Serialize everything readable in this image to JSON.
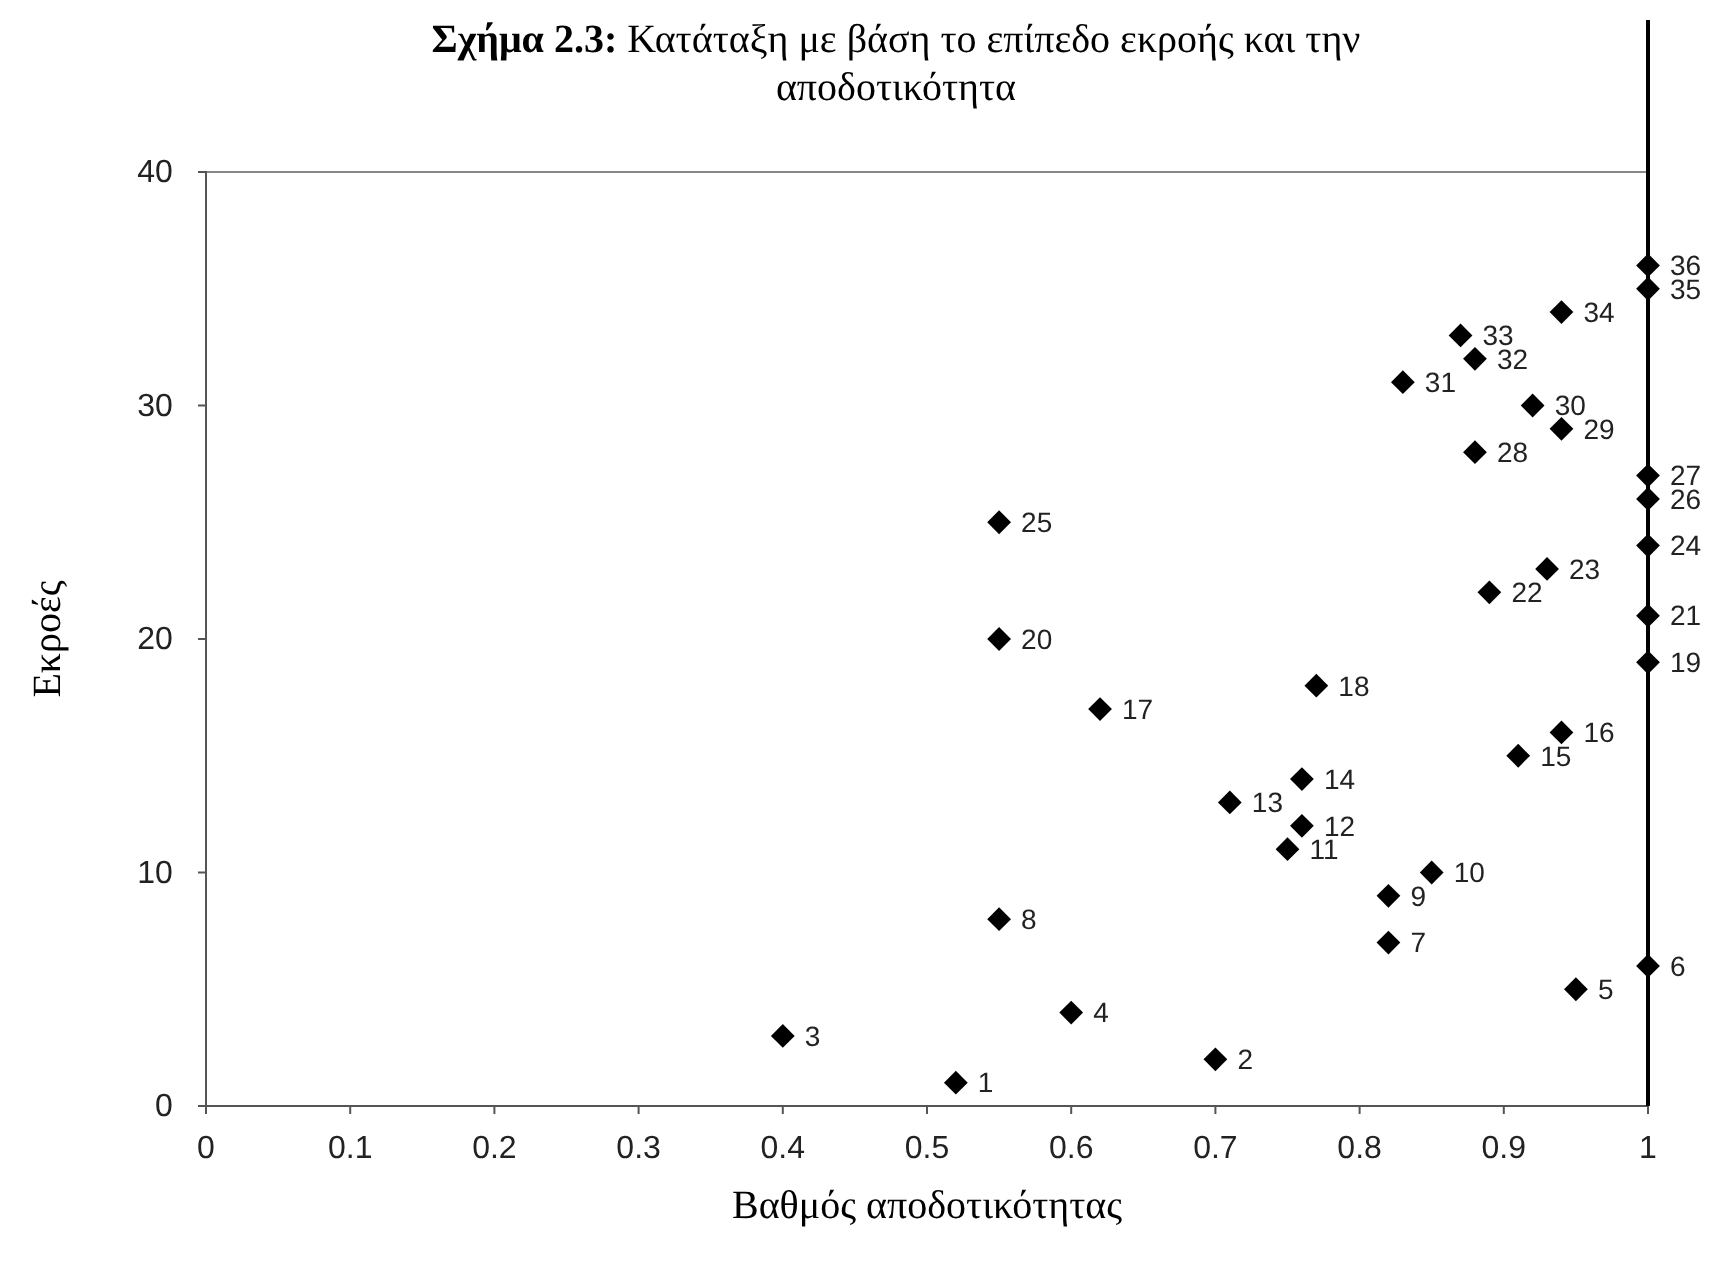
{
  "chart_data": {
    "type": "scatter",
    "title": "Σχήμα 2.3: Κατάταξη με βάση το επίπεδο εκροής και την αποδοτικότητα",
    "xlabel": "Βαθμός αποδοτικότητας",
    "ylabel": "Εκροές",
    "xlim": [
      0,
      1
    ],
    "xticks": [
      0,
      0.1,
      0.2,
      0.3,
      0.4,
      0.5,
      0.6,
      0.7,
      0.8,
      0.9,
      1
    ],
    "ylim": [
      0,
      40
    ],
    "yticks": [
      0,
      10,
      20,
      30,
      40
    ],
    "grid": false,
    "marker": "diamond",
    "ref_lines": [
      {
        "axis": "x",
        "value": 1,
        "color": "#000000"
      }
    ],
    "series": [
      {
        "color": "#000000",
        "x": [
          0.52,
          0.7,
          0.4,
          0.6,
          0.95,
          1,
          0.82,
          0.55,
          0.82,
          0.85,
          0.75,
          0.76,
          0.71,
          0.76,
          0.91,
          0.94,
          0.62,
          0.77,
          1,
          0.55,
          1,
          0.89,
          0.93,
          1,
          0.55,
          1,
          1,
          0.88,
          0.94,
          0.92,
          0.83,
          0.88,
          0.87,
          0.94,
          1,
          1
        ],
        "values": [
          1,
          2,
          3,
          4,
          5,
          6,
          7,
          8,
          9,
          10,
          11,
          12,
          13,
          14,
          15,
          16,
          17,
          18,
          19,
          20,
          21,
          22,
          23,
          24,
          25,
          26,
          27,
          28,
          29,
          30,
          31,
          32,
          33,
          34,
          35,
          36
        ],
        "value_labels": [
          "1",
          "2",
          "3",
          "4",
          "5",
          "6",
          "7",
          "8",
          "9",
          "10",
          "11",
          "12",
          "13",
          "14",
          "15",
          "16",
          "17",
          "18",
          "19",
          "20",
          "21",
          "22",
          "23",
          "24",
          "25",
          "26",
          "27",
          "28",
          "29",
          "30",
          "31",
          "32",
          "33",
          "34",
          "35",
          "36"
        ]
      }
    ]
  }
}
